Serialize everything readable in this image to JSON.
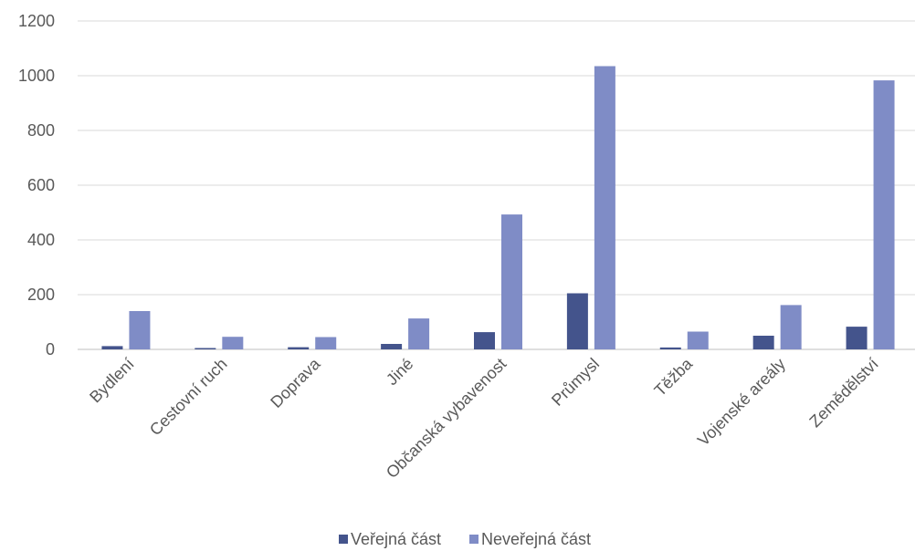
{
  "chart_data": {
    "type": "bar",
    "categories": [
      "Bydlení",
      "Cestovní ruch",
      "Doprava",
      "Jiné",
      "Občanská vybavenost",
      "Průmysl",
      "Těžba",
      "Vojenské areály",
      "Zemědělství"
    ],
    "series": [
      {
        "name": "Veřejná část",
        "color": "#44548c",
        "values": [
          12,
          5,
          8,
          20,
          63,
          205,
          7,
          50,
          83
        ]
      },
      {
        "name": "Neveřejná část",
        "color": "#7f8cc6",
        "values": [
          140,
          46,
          45,
          113,
          493,
          1035,
          65,
          162,
          983
        ]
      }
    ],
    "ylim": [
      0,
      1200
    ],
    "yticks": [
      "0",
      "200",
      "400",
      "600",
      "800",
      "1000",
      "1200"
    ],
    "grid": true,
    "legend_position": "bottom"
  }
}
